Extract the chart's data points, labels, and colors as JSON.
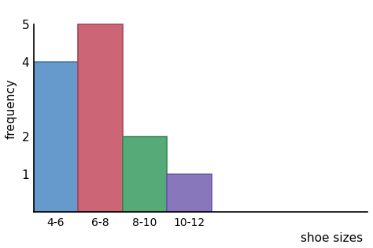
{
  "categories": [
    "4-6",
    "6-8",
    "8-10",
    "10-12"
  ],
  "values": [
    4,
    5,
    2,
    1
  ],
  "bar_colors": [
    "#6699cc",
    "#cc6677",
    "#55aa77",
    "#8877bb"
  ],
  "bar_edge_colors": [
    "#4477aa",
    "#aa4455",
    "#338855",
    "#6655aa"
  ],
  "xlabel": "shoe sizes",
  "ylabel": "frequency",
  "ylim": [
    0,
    5.5
  ],
  "yticks": [
    1,
    2,
    4,
    5
  ],
  "background_color": "#ffffff",
  "bar_width": 1.0,
  "bar_positions": [
    0.5,
    1.5,
    2.5,
    3.5
  ]
}
